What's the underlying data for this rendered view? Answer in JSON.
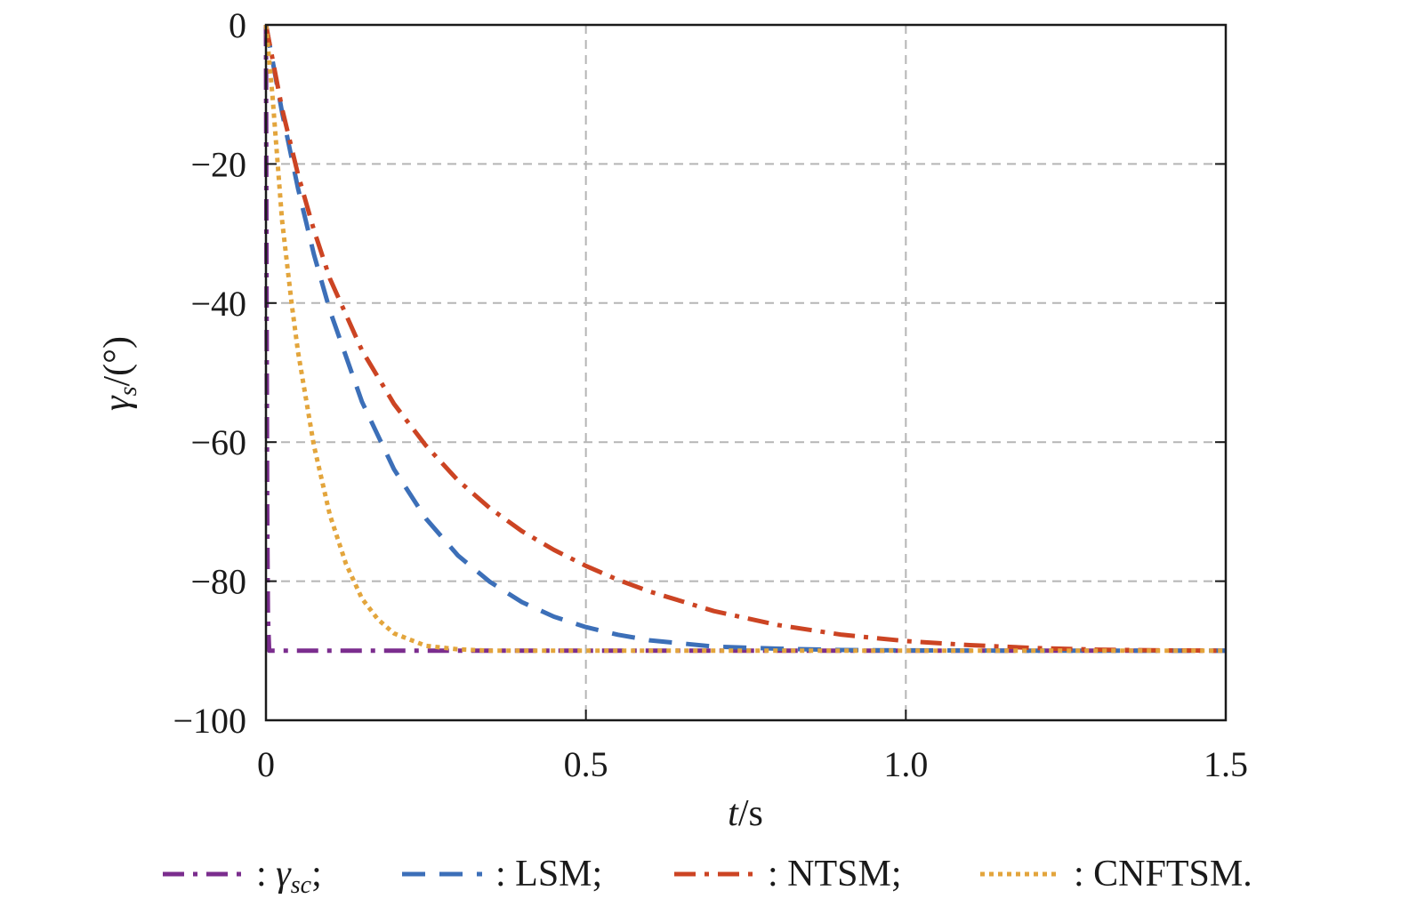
{
  "chart_data": {
    "type": "line",
    "xlabel": {
      "italic": "t",
      "unit": "/s"
    },
    "ylabel": {
      "italic": "γ",
      "sub": "s",
      "unit": "/(°)"
    },
    "xlim": [
      0,
      1.5
    ],
    "ylim": [
      -100,
      0
    ],
    "xticks": [
      0,
      0.5,
      1.0,
      1.5
    ],
    "xtick_labels": [
      "0",
      "0.5",
      "1.0",
      "1.5"
    ],
    "yticks": [
      0,
      -20,
      -40,
      -60,
      -80,
      -100
    ],
    "ytick_labels": [
      "0",
      "−20",
      "−40",
      "−60",
      "−80",
      "−100"
    ],
    "grid": true,
    "legend_position": "bottom",
    "series": [
      {
        "key": "gamma_sc",
        "legend": {
          "italic": "γ",
          "sub": "sc",
          "suffix": ";"
        },
        "color": "#7b2d8e",
        "dash": "dashdot",
        "x": [
          0,
          0.001,
          0.002,
          0.003,
          0.005,
          0.5,
          1.0,
          1.5
        ],
        "y": [
          0,
          -40,
          -70,
          -85,
          -90,
          -90,
          -90,
          -90
        ]
      },
      {
        "key": "lsm",
        "legend": {
          "text": "LSM;"
        },
        "color": "#3c6fb8",
        "dash": "dashed",
        "x": [
          0,
          0.025,
          0.05,
          0.075,
          0.1,
          0.15,
          0.2,
          0.25,
          0.3,
          0.35,
          0.4,
          0.45,
          0.5,
          0.55,
          0.6,
          0.7,
          0.8,
          0.9,
          1.0,
          1.2,
          1.5
        ],
        "y": [
          0,
          -12.5,
          -23.5,
          -33.0,
          -41.1,
          -54.2,
          -63.9,
          -71.0,
          -76.3,
          -80.1,
          -83.0,
          -85.1,
          -86.6,
          -87.7,
          -88.5,
          -89.4,
          -89.7,
          -89.9,
          -89.95,
          -90,
          -90
        ]
      },
      {
        "key": "ntsm",
        "legend": {
          "text": "NTSM;"
        },
        "color": "#cc4423",
        "dash": "dashdot",
        "x": [
          0,
          0.025,
          0.05,
          0.075,
          0.1,
          0.15,
          0.2,
          0.25,
          0.3,
          0.35,
          0.4,
          0.45,
          0.5,
          0.55,
          0.6,
          0.7,
          0.8,
          0.9,
          1.0,
          1.1,
          1.2,
          1.3,
          1.4,
          1.5
        ],
        "y": [
          0,
          -12.0,
          -21.5,
          -29.5,
          -36.5,
          -46.8,
          -54.5,
          -60.5,
          -65.5,
          -69.5,
          -72.8,
          -75.5,
          -77.8,
          -79.8,
          -81.5,
          -84.3,
          -86.3,
          -87.7,
          -88.6,
          -89.2,
          -89.6,
          -89.85,
          -89.95,
          -90
        ]
      },
      {
        "key": "cnftsm",
        "legend": {
          "text": "CNFTSM."
        },
        "color": "#e3a53c",
        "dash": "dotted",
        "x": [
          0,
          0.01,
          0.025,
          0.04,
          0.05,
          0.075,
          0.1,
          0.125,
          0.15,
          0.175,
          0.2,
          0.25,
          0.3,
          0.35,
          0.4,
          0.5,
          1.0,
          1.5
        ],
        "y": [
          0,
          -10,
          -28,
          -40,
          -47,
          -60.5,
          -70.5,
          -77.5,
          -82.5,
          -85.5,
          -87.5,
          -89.3,
          -89.8,
          -90,
          -90,
          -90,
          -90,
          -90
        ]
      }
    ]
  }
}
